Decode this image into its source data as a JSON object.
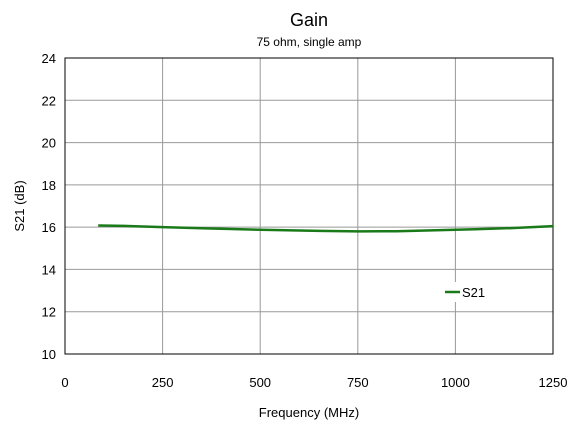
{
  "chart_data": {
    "type": "line",
    "title": "Gain",
    "subtitle": "75 ohm, single amp",
    "xlabel": "Frequency (MHz)",
    "ylabel": "S21 (dB)",
    "xlim": [
      0,
      1250
    ],
    "ylim": [
      10,
      24
    ],
    "xticks": [
      0,
      250,
      500,
      750,
      1000,
      1250
    ],
    "yticks": [
      10,
      12,
      14,
      16,
      18,
      20,
      22,
      24
    ],
    "grid": true,
    "legend_position": "bottom-right",
    "series": [
      {
        "name": "S21",
        "color": "#1a7a1a",
        "x": [
          85,
          150,
          250,
          350,
          450,
          550,
          650,
          750,
          850,
          950,
          1050,
          1150,
          1250
        ],
        "y": [
          16.08,
          16.06,
          16.0,
          15.95,
          15.9,
          15.86,
          15.82,
          15.8,
          15.81,
          15.85,
          15.9,
          15.96,
          16.05
        ]
      }
    ]
  }
}
